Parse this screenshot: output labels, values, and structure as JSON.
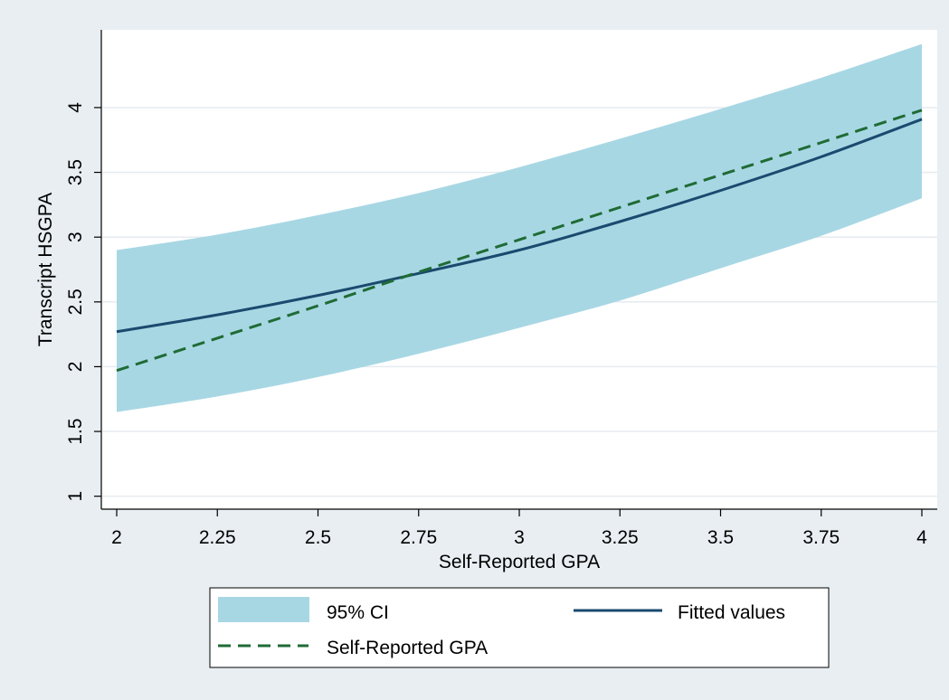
{
  "chart_data": {
    "type": "area",
    "title": "",
    "xlabel": "Self-Reported GPA",
    "ylabel": "Transcript HSGPA",
    "xlim": [
      2,
      4
    ],
    "ylim": [
      0.9,
      4.6
    ],
    "x_ticks": [
      2,
      2.25,
      2.5,
      2.75,
      3,
      3.25,
      3.5,
      3.75,
      4
    ],
    "x_tick_labels": [
      "2",
      "2.25",
      "2.5",
      "2.75",
      "3",
      "3.25",
      "3.5",
      "3.75",
      "4"
    ],
    "y_ticks": [
      1,
      1.5,
      2,
      2.5,
      3,
      3.5,
      4
    ],
    "y_tick_labels": [
      "1",
      "1.5",
      "2",
      "2.5",
      "3",
      "3.5",
      "4"
    ],
    "grid": true,
    "legend_position": "bottom",
    "x": [
      2,
      2.25,
      2.5,
      2.75,
      3,
      3.25,
      3.5,
      3.75,
      4
    ],
    "series": [
      {
        "name": "95% CI",
        "kind": "band",
        "color": "#a8d7e4",
        "lower": [
          1.65,
          1.77,
          1.92,
          2.1,
          2.3,
          2.51,
          2.76,
          3.01,
          3.3
        ],
        "upper": [
          2.9,
          3.02,
          3.17,
          3.34,
          3.54,
          3.76,
          3.99,
          4.23,
          4.49
        ]
      },
      {
        "name": "Fitted values",
        "kind": "line",
        "color": "#1a4a6e",
        "dash": "solid",
        "values": [
          2.27,
          2.4,
          2.55,
          2.72,
          2.9,
          3.12,
          3.36,
          3.62,
          3.91
        ]
      },
      {
        "name": "Self-Reported GPA",
        "kind": "line",
        "color": "#1f6b35",
        "dash": "dashed",
        "values": [
          1.97,
          2.22,
          2.47,
          2.73,
          2.98,
          3.23,
          3.48,
          3.73,
          3.98
        ]
      }
    ]
  }
}
